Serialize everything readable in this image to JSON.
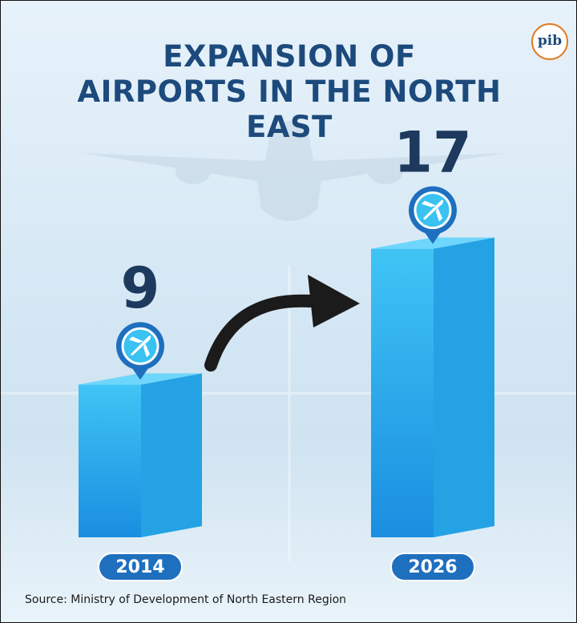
{
  "chart_data": {
    "type": "bar",
    "title": "EXPANSION OF AIRPORTS IN THE NORTH EAST",
    "logo": "pib",
    "categories": [
      "2014",
      "2026"
    ],
    "values": [
      9,
      17
    ],
    "color": "#1a9ee3",
    "source": "Source: Ministry of Development of North Eastern Region"
  }
}
